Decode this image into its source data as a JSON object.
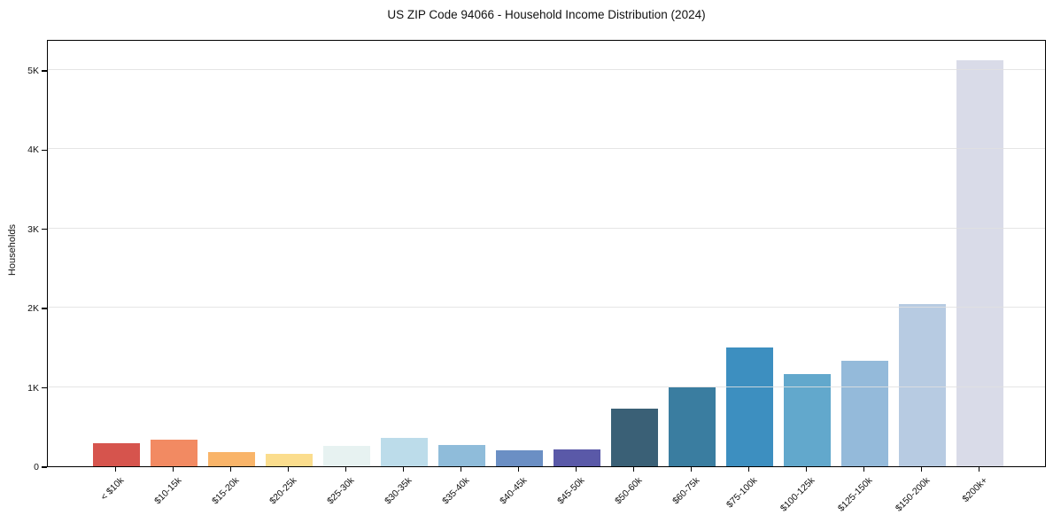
{
  "chart_data": {
    "type": "bar",
    "title": "US ZIP Code 94066 - Household Income Distribution (2024)",
    "ylabel": "Households",
    "xlabel": "",
    "categories": [
      "< $10k",
      "$10-15k",
      "$15-20k",
      "$20-25k",
      "$25-30k",
      "$30-35k",
      "$35-40k",
      "$40-45k",
      "$45-50k",
      "$50-60k",
      "$60-75k",
      "$75-100k",
      "$100-125k",
      "$125-150k",
      "$150-200k",
      "$200k+"
    ],
    "values": [
      290,
      335,
      180,
      155,
      260,
      355,
      265,
      200,
      210,
      730,
      1000,
      1500,
      1160,
      1330,
      2050,
      5120
    ],
    "bar_colors": [
      "#d6544d",
      "#f28a62",
      "#f9b469",
      "#fbdd8d",
      "#e7f2f1",
      "#bcdcea",
      "#8fbcda",
      "#6b8fc4",
      "#5a59a8",
      "#3a6076",
      "#3a7da0",
      "#3d8fc0",
      "#62a8cc",
      "#94bada",
      "#b7cbe2",
      "#d9dbe8"
    ],
    "yticks": {
      "values": [
        0,
        1000,
        2000,
        3000,
        4000,
        5000
      ],
      "labels": [
        "0",
        "1K",
        "2K",
        "3K",
        "4K",
        "5K"
      ]
    },
    "ylim": [
      0,
      5390
    ],
    "grid": "horizontal-only",
    "legend": "none"
  },
  "colors": {
    "background": "#ffffff",
    "axis": "#000000",
    "text": "#111111",
    "gridline": "#e1e1e1"
  }
}
